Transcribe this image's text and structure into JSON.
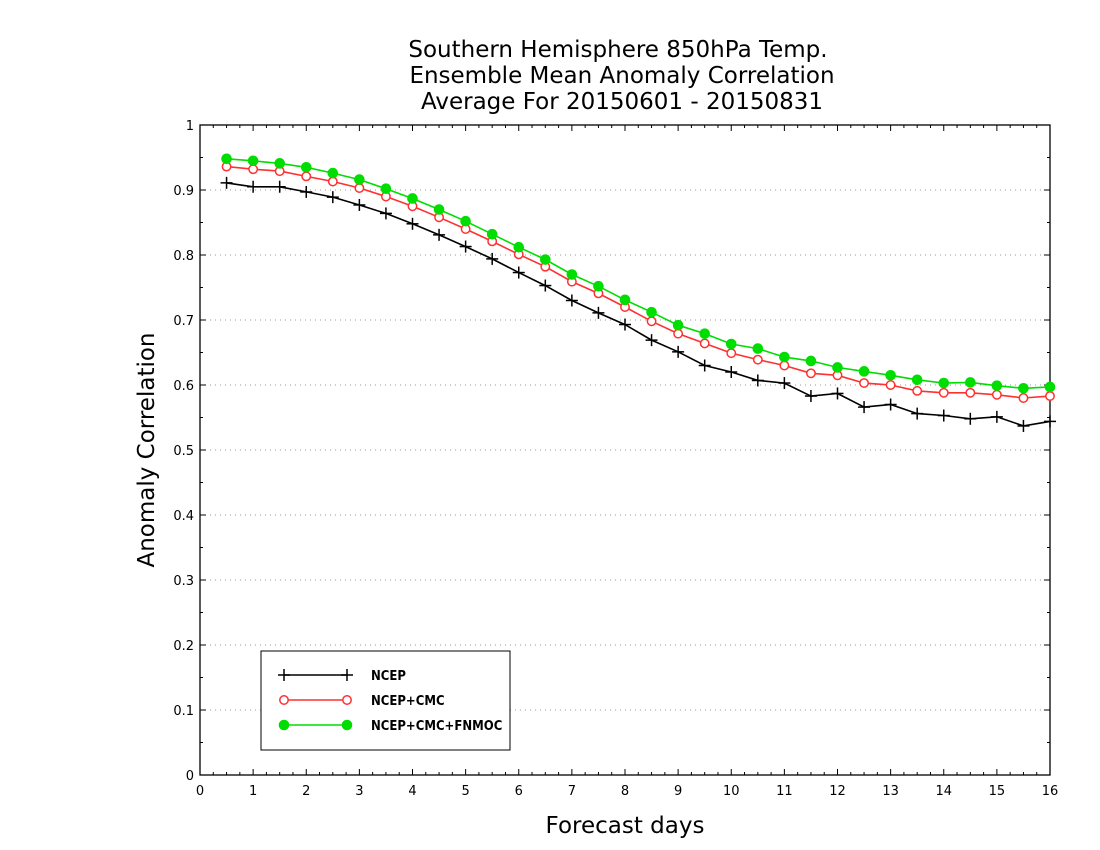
{
  "chart_data": {
    "type": "line",
    "title": [
      "Southern Hemisphere 850hPa Temp.",
      "Ensemble Mean Anomaly Correlation",
      "Average For 20150601 - 20150831"
    ],
    "xlabel": "Forecast days",
    "ylabel": "Anomaly Correlation",
    "xlim": [
      0,
      16
    ],
    "ylim": [
      0,
      1
    ],
    "x_ticks": [
      "0",
      "1",
      "2",
      "3",
      "4",
      "5",
      "6",
      "7",
      "8",
      "9",
      "10",
      "11",
      "12",
      "13",
      "14",
      "15",
      "16"
    ],
    "y_ticks": [
      "0",
      "0.1",
      "0.2",
      "0.3",
      "0.4",
      "0.5",
      "0.6",
      "0.7",
      "0.8",
      "0.9",
      "1"
    ],
    "grid": "horizontal-dotted",
    "legend_position": "bottom-left",
    "x": [
      0.5,
      1,
      1.5,
      2,
      2.5,
      3,
      3.5,
      4,
      4.5,
      5,
      5.5,
      6,
      6.5,
      7,
      7.5,
      8,
      8.5,
      9,
      9.5,
      10,
      10.5,
      11,
      11.5,
      12,
      12.5,
      13,
      13.5,
      14,
      14.5,
      15,
      15.5,
      16
    ],
    "series": [
      {
        "name": "NCEP",
        "color": "#000000",
        "marker": "plus",
        "values": [
          0.911,
          0.905,
          0.905,
          0.897,
          0.889,
          0.877,
          0.864,
          0.848,
          0.831,
          0.813,
          0.794,
          0.773,
          0.753,
          0.73,
          0.711,
          0.693,
          0.669,
          0.651,
          0.63,
          0.62,
          0.607,
          0.603,
          0.583,
          0.587,
          0.566,
          0.57,
          0.556,
          0.553,
          0.548,
          0.551,
          0.537,
          0.544
        ]
      },
      {
        "name": "NCEP+CMC",
        "color": "#ff3030",
        "marker": "open-circle",
        "values": [
          0.936,
          0.932,
          0.929,
          0.921,
          0.913,
          0.903,
          0.89,
          0.875,
          0.858,
          0.84,
          0.821,
          0.801,
          0.782,
          0.759,
          0.741,
          0.72,
          0.698,
          0.679,
          0.664,
          0.649,
          0.639,
          0.63,
          0.618,
          0.615,
          0.603,
          0.6,
          0.591,
          0.588,
          0.588,
          0.585,
          0.58,
          0.583
        ]
      },
      {
        "name": "NCEP+CMC+FNMOC",
        "color": "#00dd00",
        "marker": "filled-circle",
        "values": [
          0.948,
          0.945,
          0.941,
          0.935,
          0.926,
          0.916,
          0.902,
          0.887,
          0.87,
          0.852,
          0.832,
          0.812,
          0.793,
          0.77,
          0.752,
          0.731,
          0.712,
          0.692,
          0.679,
          0.663,
          0.656,
          0.643,
          0.637,
          0.627,
          0.621,
          0.615,
          0.608,
          0.603,
          0.604,
          0.599,
          0.595,
          0.597
        ]
      }
    ]
  }
}
